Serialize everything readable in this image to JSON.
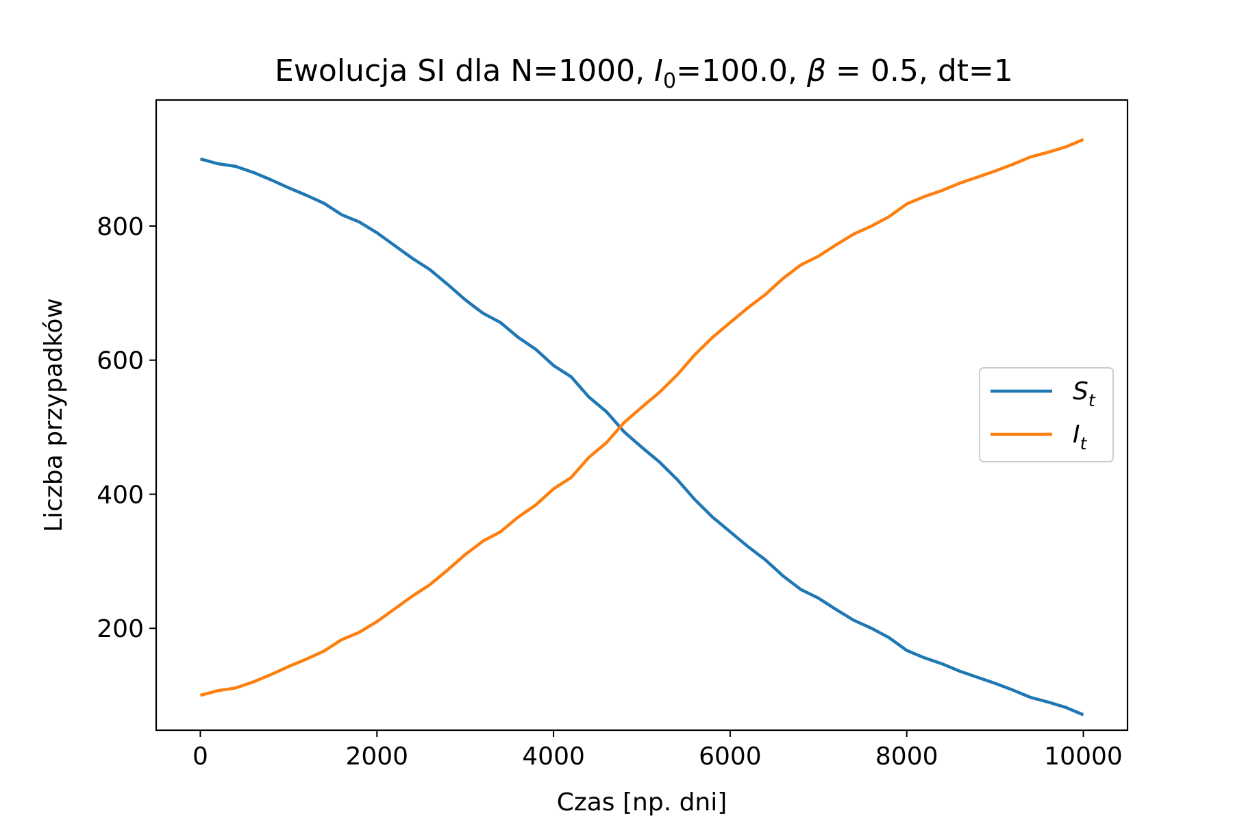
{
  "chart_data": {
    "type": "line",
    "title": {
      "prefix": "Ewolucja SI dla N=1000, ",
      "i_symbol": "I",
      "i_subscript": "0",
      "i_value": "=100.0, ",
      "beta_symbol": "β",
      "beta_value": " = 0.5, dt=1"
    },
    "xlabel": "Czas [np. dni]",
    "ylabel": "Liczba przypadków",
    "xlim": [
      -500,
      10500
    ],
    "ylim": [
      48,
      988
    ],
    "xticks": [
      0,
      2000,
      4000,
      6000,
      8000,
      10000
    ],
    "yticks": [
      200,
      400,
      600,
      800
    ],
    "legend_position": "center-right",
    "grid": false,
    "series": [
      {
        "name": "S",
        "subscript": "t",
        "color": "#1f77b4",
        "x": [
          0,
          200,
          400,
          600,
          800,
          1000,
          1200,
          1400,
          1600,
          1800,
          2000,
          2200,
          2400,
          2600,
          2800,
          3000,
          3200,
          3400,
          3600,
          3800,
          4000,
          4200,
          4400,
          4600,
          4800,
          5000,
          5200,
          5400,
          5600,
          5800,
          6000,
          6200,
          6400,
          6600,
          6800,
          7000,
          7200,
          7400,
          7600,
          7800,
          8000,
          8200,
          8400,
          8600,
          8800,
          9000,
          9200,
          9400,
          9600,
          9800,
          10000
        ],
        "values": [
          900,
          893,
          889,
          880,
          869,
          857,
          846,
          834,
          817,
          806,
          790,
          771,
          752,
          735,
          713,
          690,
          670,
          656,
          634,
          616,
          592,
          575,
          545,
          523,
          493,
          470,
          448,
          422,
          392,
          366,
          344,
          322,
          302,
          278,
          258,
          245,
          228,
          212,
          200,
          186,
          167,
          156,
          147,
          136,
          127,
          118,
          108,
          97,
          90,
          82,
          71
        ]
      },
      {
        "name": "I",
        "subscript": "t",
        "color": "#ff7f0e",
        "x": [
          0,
          200,
          400,
          600,
          800,
          1000,
          1200,
          1400,
          1600,
          1800,
          2000,
          2200,
          2400,
          2600,
          2800,
          3000,
          3200,
          3400,
          3600,
          3800,
          4000,
          4200,
          4400,
          4600,
          4800,
          5000,
          5200,
          5400,
          5600,
          5800,
          6000,
          6200,
          6400,
          6600,
          6800,
          7000,
          7200,
          7400,
          7600,
          7800,
          8000,
          8200,
          8400,
          8600,
          8800,
          9000,
          9200,
          9400,
          9600,
          9800,
          10000
        ],
        "values": [
          100,
          107,
          111,
          120,
          131,
          143,
          154,
          166,
          183,
          194,
          210,
          229,
          248,
          265,
          287,
          310,
          330,
          344,
          366,
          384,
          408,
          425,
          455,
          477,
          507,
          530,
          552,
          578,
          608,
          634,
          656,
          678,
          698,
          722,
          742,
          755,
          772,
          788,
          800,
          814,
          833,
          844,
          853,
          864,
          873,
          882,
          892,
          903,
          910,
          918,
          929
        ]
      }
    ]
  }
}
